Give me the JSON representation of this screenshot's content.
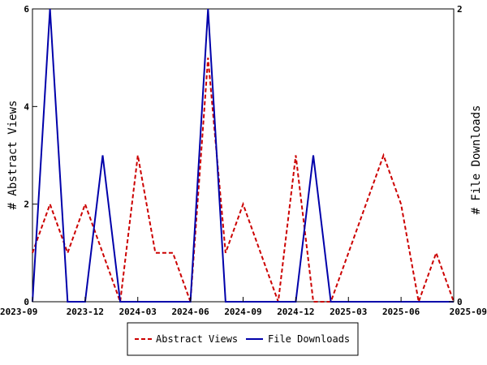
{
  "chart_data": {
    "type": "line",
    "title": "",
    "xlabel": "",
    "ylabel": "# Abstract Views",
    "y2label": "# File Downloads",
    "x_tick_labels": [
      "2023-09",
      "2023-12",
      "2024-03",
      "2024-06",
      "2024-09",
      "2024-12",
      "2025-03",
      "2025-06",
      "2025-09"
    ],
    "y_tick_labels": [
      "0",
      "2",
      "4",
      "6"
    ],
    "y2_tick_labels": [
      "0",
      "2"
    ],
    "ylim": [
      0,
      6
    ],
    "y2lim": [
      0,
      2
    ],
    "x": [
      "2023-09",
      "2023-10",
      "2023-11",
      "2023-12",
      "2024-01",
      "2024-02",
      "2024-03",
      "2024-04",
      "2024-05",
      "2024-06",
      "2024-07",
      "2024-08",
      "2024-09",
      "2024-10",
      "2024-11",
      "2024-12",
      "2025-01",
      "2025-02",
      "2025-03",
      "2025-04",
      "2025-05",
      "2025-06",
      "2025-07",
      "2025-08",
      "2025-09"
    ],
    "series": [
      {
        "name": "Abstract Views",
        "axis": "left",
        "color": "#cc0000",
        "style": "dashed",
        "values": [
          1,
          2,
          1,
          2,
          1,
          0,
          3,
          1,
          1,
          0,
          5,
          1,
          2,
          1,
          0,
          3,
          0,
          0,
          1,
          2,
          3,
          2,
          0,
          1,
          0
        ]
      },
      {
        "name": "File Downloads",
        "axis": "right",
        "color": "#0000aa",
        "style": "solid",
        "values": [
          0,
          2,
          0,
          0,
          1,
          0,
          0,
          0,
          0,
          0,
          2,
          0,
          0,
          0,
          0,
          0,
          1,
          0,
          0,
          0,
          0,
          0,
          0,
          0,
          0
        ]
      }
    ],
    "grid": false,
    "legend_position": "bottom"
  }
}
